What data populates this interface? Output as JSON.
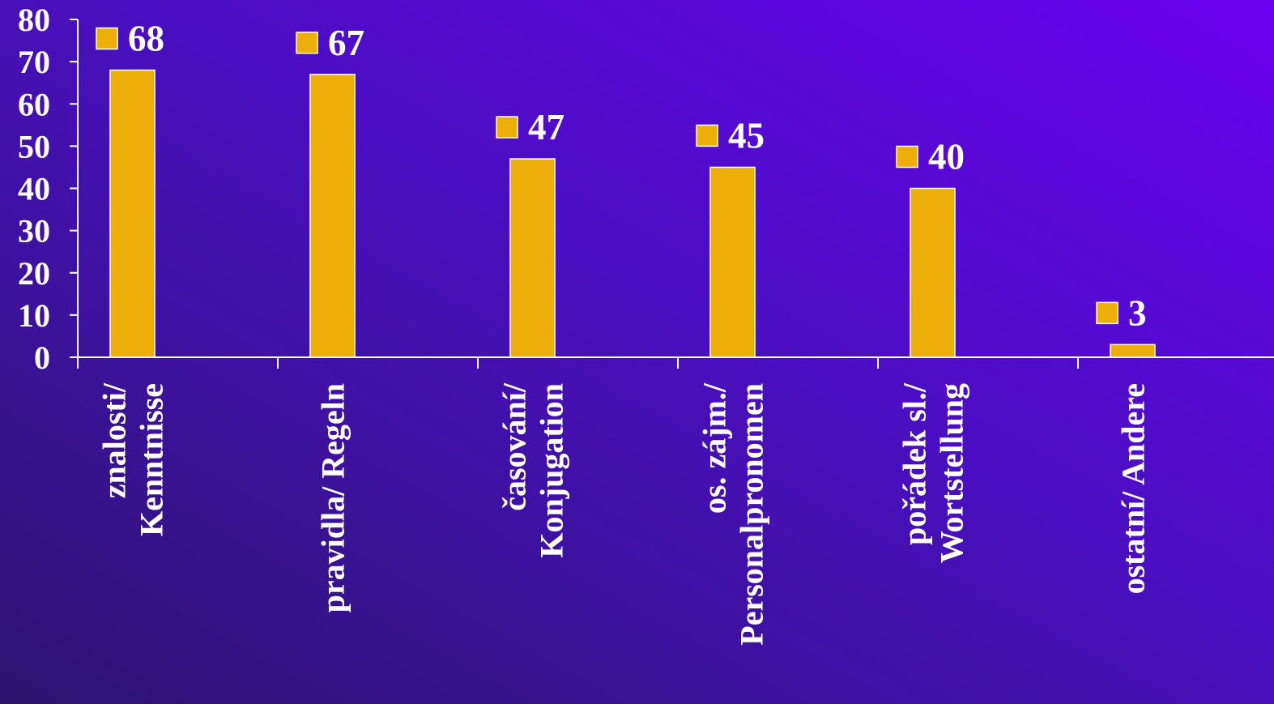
{
  "chart_data": {
    "type": "bar",
    "categories": [
      [
        "znalosti/",
        "Kenntnisse"
      ],
      [
        "pravidla/ Regeln"
      ],
      [
        "časování/",
        "Konjugation"
      ],
      [
        "os. zájm./",
        "Personalpronomen"
      ],
      [
        "pořádek sl./",
        "Wortstellung"
      ],
      [
        "ostatní/ Andere"
      ]
    ],
    "values": [
      68,
      67,
      47,
      45,
      40,
      3
    ],
    "data_labels": [
      "68",
      "67",
      "47",
      "45",
      "40",
      "3"
    ],
    "ylim": [
      0,
      80
    ],
    "yticks": [
      "0",
      "10",
      "20",
      "30",
      "40",
      "50",
      "60",
      "70",
      "80"
    ],
    "bar_color": "#eeae0a",
    "background_gradient": [
      "#2c1470",
      "#4a0fc0",
      "#6a00f0"
    ],
    "axis_color": "#ffffff",
    "text_color": "#ffffff",
    "grid": false,
    "legend": "none"
  }
}
